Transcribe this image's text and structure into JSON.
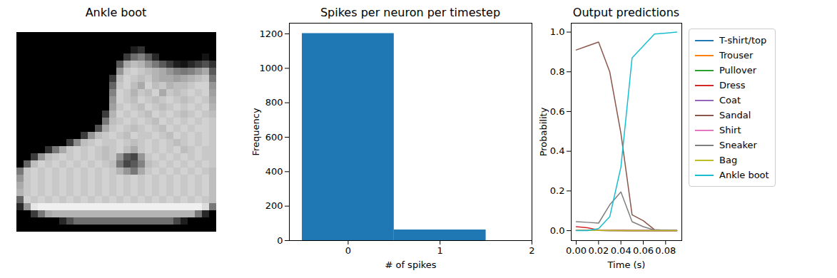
{
  "chart_data": [
    {
      "type": "image",
      "title": "Ankle boot",
      "tick_labels": false,
      "color_range": [
        0,
        255
      ],
      "cells": [
        [
          0,
          0,
          0,
          0,
          0,
          0,
          0,
          0,
          0,
          0,
          0,
          0,
          0,
          0,
          0,
          0,
          0,
          0,
          0,
          0,
          0,
          0,
          0,
          0,
          0,
          0,
          0,
          0
        ],
        [
          0,
          0,
          0,
          0,
          0,
          0,
          0,
          0,
          0,
          0,
          0,
          0,
          0,
          0,
          0,
          0,
          0,
          0,
          0,
          0,
          0,
          0,
          0,
          0,
          0,
          0,
          0,
          0
        ],
        [
          0,
          0,
          0,
          0,
          0,
          0,
          0,
          0,
          0,
          0,
          0,
          0,
          0,
          0,
          0,
          0,
          30,
          50,
          0,
          0,
          0,
          0,
          0,
          0,
          0,
          0,
          0,
          0
        ],
        [
          0,
          0,
          0,
          0,
          0,
          0,
          0,
          0,
          0,
          0,
          0,
          0,
          0,
          0,
          0,
          60,
          110,
          130,
          90,
          40,
          0,
          0,
          0,
          0,
          0,
          0,
          20,
          0
        ],
        [
          0,
          0,
          0,
          0,
          0,
          0,
          0,
          0,
          0,
          0,
          0,
          0,
          0,
          0,
          90,
          170,
          190,
          180,
          150,
          120,
          90,
          60,
          30,
          20,
          40,
          60,
          80,
          50
        ],
        [
          0,
          0,
          0,
          0,
          0,
          0,
          0,
          0,
          0,
          0,
          0,
          0,
          0,
          0,
          150,
          200,
          210,
          200,
          190,
          180,
          170,
          150,
          130,
          120,
          130,
          150,
          170,
          90
        ],
        [
          0,
          0,
          0,
          0,
          0,
          0,
          0,
          0,
          0,
          0,
          0,
          0,
          0,
          60,
          190,
          210,
          200,
          190,
          200,
          180,
          170,
          170,
          160,
          170,
          180,
          190,
          200,
          120
        ],
        [
          0,
          0,
          0,
          0,
          0,
          0,
          0,
          0,
          0,
          0,
          0,
          0,
          0,
          100,
          200,
          210,
          190,
          170,
          210,
          190,
          200,
          180,
          190,
          190,
          200,
          210,
          210,
          150
        ],
        [
          0,
          0,
          0,
          0,
          0,
          0,
          0,
          0,
          0,
          0,
          0,
          0,
          0,
          130,
          210,
          200,
          180,
          200,
          190,
          210,
          170,
          200,
          190,
          200,
          210,
          200,
          210,
          160
        ],
        [
          0,
          0,
          0,
          0,
          0,
          0,
          0,
          0,
          0,
          0,
          0,
          0,
          0,
          150,
          210,
          200,
          190,
          210,
          200,
          190,
          200,
          210,
          200,
          190,
          200,
          210,
          200,
          170
        ],
        [
          0,
          0,
          0,
          0,
          0,
          0,
          0,
          0,
          0,
          0,
          0,
          0,
          0,
          160,
          200,
          210,
          200,
          190,
          210,
          200,
          190,
          200,
          210,
          200,
          210,
          200,
          210,
          180
        ],
        [
          0,
          0,
          0,
          0,
          0,
          0,
          0,
          0,
          0,
          0,
          0,
          0,
          60,
          180,
          210,
          200,
          210,
          200,
          190,
          210,
          200,
          210,
          200,
          190,
          200,
          210,
          200,
          190
        ],
        [
          0,
          0,
          0,
          0,
          0,
          0,
          0,
          0,
          0,
          0,
          0,
          0,
          120,
          190,
          200,
          210,
          200,
          210,
          200,
          190,
          210,
          200,
          210,
          200,
          210,
          200,
          210,
          200
        ],
        [
          0,
          0,
          0,
          0,
          0,
          0,
          0,
          0,
          0,
          0,
          0,
          80,
          170,
          200,
          210,
          200,
          190,
          200,
          210,
          200,
          190,
          210,
          200,
          210,
          200,
          210,
          210,
          200
        ],
        [
          0,
          0,
          0,
          0,
          0,
          0,
          0,
          0,
          0,
          60,
          150,
          190,
          200,
          210,
          200,
          190,
          210,
          200,
          200,
          210,
          200,
          190,
          210,
          200,
          210,
          200,
          210,
          200
        ],
        [
          0,
          0,
          0,
          0,
          0,
          0,
          0,
          60,
          140,
          190,
          200,
          210,
          200,
          200,
          210,
          200,
          190,
          200,
          210,
          200,
          210,
          200,
          190,
          200,
          210,
          200,
          210,
          200
        ],
        [
          0,
          0,
          0,
          0,
          50,
          120,
          170,
          200,
          210,
          200,
          210,
          200,
          190,
          200,
          210,
          190,
          170,
          200,
          210,
          200,
          210,
          200,
          210,
          190,
          200,
          210,
          200,
          200
        ],
        [
          0,
          0,
          60,
          150,
          190,
          200,
          210,
          200,
          210,
          200,
          210,
          200,
          190,
          200,
          150,
          90,
          70,
          150,
          200,
          210,
          200,
          210,
          200,
          210,
          200,
          210,
          200,
          200
        ],
        [
          0,
          100,
          190,
          210,
          200,
          210,
          200,
          210,
          200,
          210,
          200,
          210,
          200,
          190,
          120,
          70,
          90,
          130,
          190,
          200,
          210,
          200,
          210,
          200,
          210,
          200,
          210,
          200
        ],
        [
          120,
          200,
          210,
          200,
          210,
          200,
          210,
          200,
          210,
          200,
          210,
          200,
          210,
          200,
          180,
          150,
          120,
          170,
          200,
          210,
          200,
          210,
          200,
          210,
          200,
          210,
          200,
          190
        ],
        [
          150,
          200,
          210,
          200,
          210,
          200,
          210,
          200,
          210,
          200,
          210,
          200,
          210,
          200,
          210,
          200,
          210,
          200,
          210,
          200,
          210,
          200,
          210,
          200,
          210,
          200,
          210,
          190
        ],
        [
          170,
          200,
          210,
          200,
          210,
          200,
          210,
          200,
          210,
          200,
          210,
          200,
          210,
          200,
          210,
          200,
          210,
          200,
          210,
          200,
          210,
          200,
          210,
          200,
          210,
          200,
          210,
          190
        ],
        [
          180,
          200,
          210,
          200,
          210,
          200,
          210,
          200,
          210,
          200,
          210,
          200,
          210,
          200,
          210,
          200,
          210,
          200,
          210,
          200,
          210,
          200,
          210,
          200,
          210,
          200,
          210,
          190
        ],
        [
          100,
          210,
          200,
          210,
          200,
          210,
          200,
          210,
          200,
          210,
          200,
          210,
          200,
          210,
          200,
          210,
          200,
          210,
          200,
          210,
          200,
          210,
          200,
          210,
          200,
          210,
          200,
          190
        ],
        [
          40,
          150,
          230,
          240,
          240,
          240,
          240,
          240,
          240,
          240,
          240,
          240,
          240,
          240,
          240,
          240,
          240,
          240,
          240,
          240,
          240,
          240,
          240,
          240,
          240,
          240,
          220,
          120
        ],
        [
          0,
          0,
          60,
          120,
          170,
          180,
          180,
          180,
          180,
          180,
          180,
          180,
          180,
          180,
          180,
          180,
          180,
          180,
          180,
          180,
          180,
          180,
          180,
          180,
          180,
          120,
          40,
          0
        ],
        [
          0,
          0,
          0,
          0,
          0,
          0,
          40,
          80,
          110,
          110,
          110,
          110,
          110,
          110,
          110,
          110,
          110,
          110,
          110,
          110,
          110,
          110,
          70,
          30,
          0,
          0,
          0,
          0
        ],
        [
          0,
          0,
          0,
          0,
          0,
          0,
          0,
          0,
          0,
          0,
          0,
          0,
          0,
          0,
          0,
          0,
          0,
          0,
          0,
          0,
          0,
          0,
          0,
          0,
          0,
          0,
          0,
          0
        ]
      ]
    },
    {
      "type": "histogram",
      "title": "Spikes per neuron per timestep",
      "x_label": "# of spikes",
      "y_label": "Frequency",
      "bins": [
        -0.5,
        0.5,
        1.5
      ],
      "counts": [
        1202,
        62
      ],
      "color": "#1f77b4",
      "xlim": [
        -0.64,
        2
      ],
      "xticks": [
        0,
        1,
        2
      ],
      "ylim": [
        0,
        1262
      ],
      "yticks": [
        0,
        200,
        400,
        600,
        800,
        1000,
        1200
      ],
      "grid": false
    },
    {
      "type": "line",
      "title": "Output predictions",
      "x_label": "Time (s)",
      "y_label": "Probability",
      "x": [
        0,
        0.01,
        0.02,
        0.03,
        0.04,
        0.05,
        0.06,
        0.07,
        0.08,
        0.09
      ],
      "series": [
        {
          "name": "T-shirt/top",
          "color": "#1f77b4",
          "values": [
            0.002,
            0.002,
            0.001,
            0.001,
            0.001,
            0,
            0,
            0,
            0,
            0
          ]
        },
        {
          "name": "Trouser",
          "color": "#ff7f0e",
          "values": [
            0.001,
            0.001,
            0.001,
            0,
            0,
            0,
            0,
            0,
            0,
            0
          ]
        },
        {
          "name": "Pullover",
          "color": "#2ca02c",
          "values": [
            0.001,
            0.001,
            0.001,
            0,
            0,
            0,
            0,
            0,
            0,
            0
          ]
        },
        {
          "name": "Dress",
          "color": "#d62728",
          "values": [
            0.02,
            0.015,
            0.003,
            0.002,
            0.001,
            0,
            0,
            0,
            0,
            0
          ]
        },
        {
          "name": "Coat",
          "color": "#9467bd",
          "values": [
            0.001,
            0.001,
            0.001,
            0,
            0,
            0,
            0,
            0,
            0,
            0
          ]
        },
        {
          "name": "Sandal",
          "color": "#8c564b",
          "values": [
            0.91,
            0.93,
            0.95,
            0.8,
            0.49,
            0.08,
            0.05,
            0.005,
            0.002,
            0.001
          ]
        },
        {
          "name": "Shirt",
          "color": "#e377c2",
          "values": [
            0.002,
            0.002,
            0.001,
            0.001,
            0,
            0,
            0,
            0,
            0,
            0
          ]
        },
        {
          "name": "Sneaker",
          "color": "#7f7f7f",
          "values": [
            0.045,
            0.042,
            0.038,
            0.13,
            0.195,
            0.045,
            0.02,
            0.003,
            0.002,
            0.001
          ]
        },
        {
          "name": "Bag",
          "color": "#bcbd22",
          "values": [
            0.001,
            0.001,
            0.001,
            0.001,
            0,
            0,
            0,
            0,
            0,
            0
          ]
        },
        {
          "name": "Ankle boot",
          "color": "#17becf",
          "values": [
            0,
            0,
            0.01,
            0.07,
            0.32,
            0.87,
            0.93,
            0.99,
            0.995,
            1.0
          ]
        }
      ],
      "xlim": [
        -0.0045,
        0.0945
      ],
      "xticks": [
        {
          "value": 0,
          "label": "0.00"
        },
        {
          "value": 0.02,
          "label": "0.02"
        },
        {
          "value": 0.04,
          "label": "0.04"
        },
        {
          "value": 0.06,
          "label": "0.06"
        },
        {
          "value": 0.08,
          "label": "0.08"
        }
      ],
      "ylim": [
        -0.05,
        1.045
      ],
      "yticks": [
        {
          "value": 0,
          "label": "0.0"
        },
        {
          "value": 0.2,
          "label": "0.2"
        },
        {
          "value": 0.4,
          "label": "0.4"
        },
        {
          "value": 0.6,
          "label": "0.6"
        },
        {
          "value": 0.8,
          "label": "0.8"
        },
        {
          "value": 1,
          "label": "1.0"
        }
      ],
      "legend": "right",
      "grid": false
    }
  ]
}
